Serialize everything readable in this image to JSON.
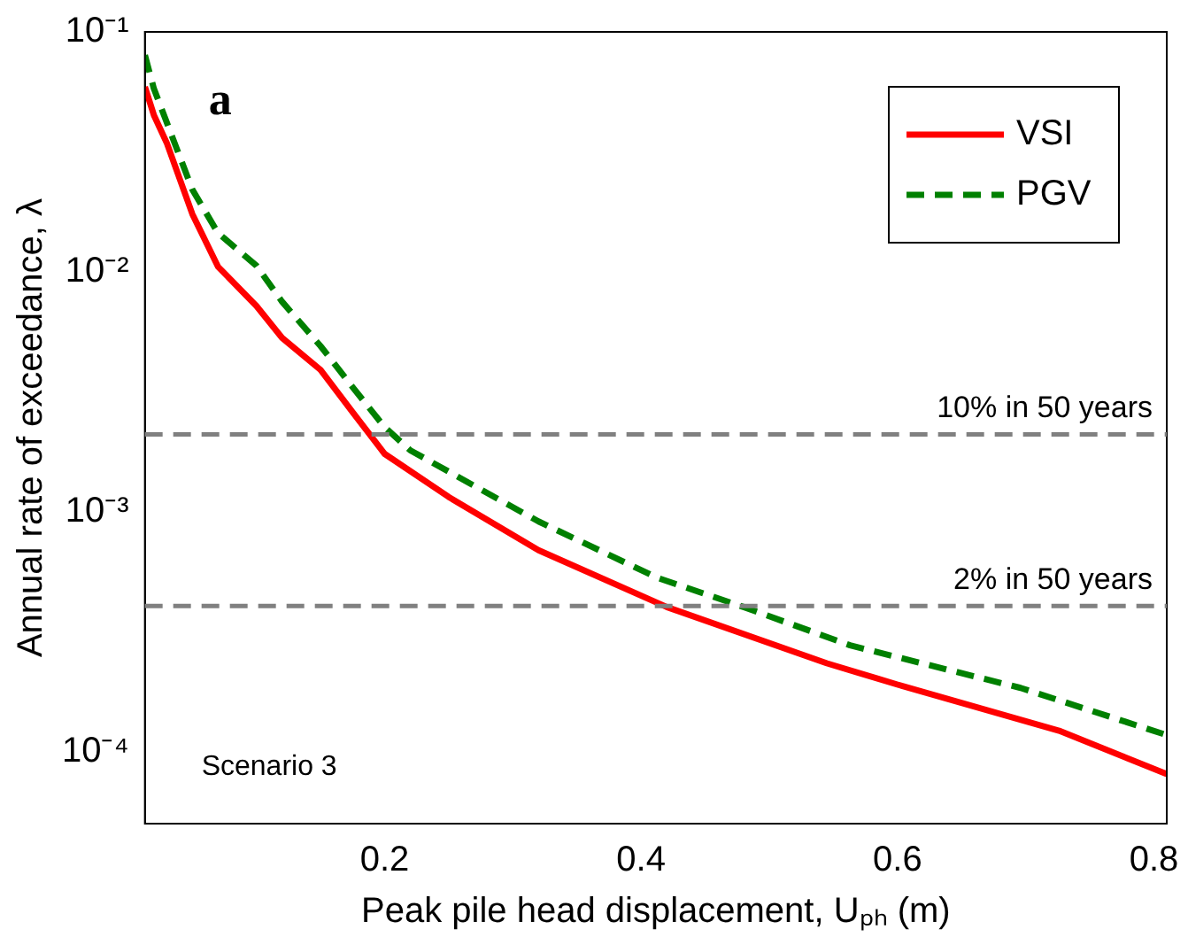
{
  "chart_data": {
    "type": "line",
    "xlabel": "Peak pile head displacement, Uₚₕ (m)",
    "ylabel": "Annual rate of exceedance, λ",
    "xlim": [
      0.013,
      0.81
    ],
    "xticks": [
      0.2,
      0.4,
      0.6,
      0.8
    ],
    "ylim": [
      5e-05,
      0.1
    ],
    "yticks": [
      {
        "value": 0.1,
        "label": "10⁻¹"
      },
      {
        "value": 0.01,
        "label": "10⁻²"
      },
      {
        "value": 0.001,
        "label": "10⁻³"
      },
      {
        "value": 0.0001,
        "label": "10⁻⁴"
      }
    ],
    "log": true,
    "grid": false,
    "legend": "top right",
    "marker": "none",
    "series": [
      {
        "name": "VSI",
        "color": "#ff0000",
        "line_style": "solid",
        "x": [
          0.013,
          0.02,
          0.03,
          0.05,
          0.07,
          0.1,
          0.12,
          0.15,
          0.175,
          0.2,
          0.25,
          0.32,
          0.42,
          0.545,
          0.6,
          0.726,
          0.81
        ],
        "values": [
          0.059,
          0.045,
          0.0345,
          0.0174,
          0.0105,
          0.0072,
          0.0053,
          0.0039,
          0.0026,
          0.00174,
          0.00115,
          0.00069,
          0.0004,
          0.000233,
          0.00019,
          0.000122,
          8.05e-05
        ]
      },
      {
        "name": "PGV",
        "color": "#008000",
        "line_style": "dashed",
        "x": [
          0.013,
          0.02,
          0.03,
          0.05,
          0.07,
          0.1,
          0.12,
          0.15,
          0.175,
          0.2,
          0.22,
          0.32,
          0.4125,
          0.48,
          0.563,
          0.696,
          0.81
        ],
        "values": [
          0.08,
          0.058,
          0.042,
          0.022,
          0.0145,
          0.0106,
          0.0075,
          0.0049,
          0.0033,
          0.00225,
          0.0018,
          0.00091,
          0.00053,
          0.0004,
          0.000277,
          0.000184,
          0.000117
        ]
      }
    ],
    "ref_lines": [
      {
        "axis": "y",
        "value": 0.0021,
        "label": "10% in 50 years",
        "color": "#808080",
        "line_style": "dashed"
      },
      {
        "axis": "y",
        "value": 0.000404,
        "label": "2% in 50 years",
        "color": "#808080",
        "line_style": "dashed"
      }
    ],
    "annotations": [
      "a",
      "Scenario 3"
    ]
  }
}
